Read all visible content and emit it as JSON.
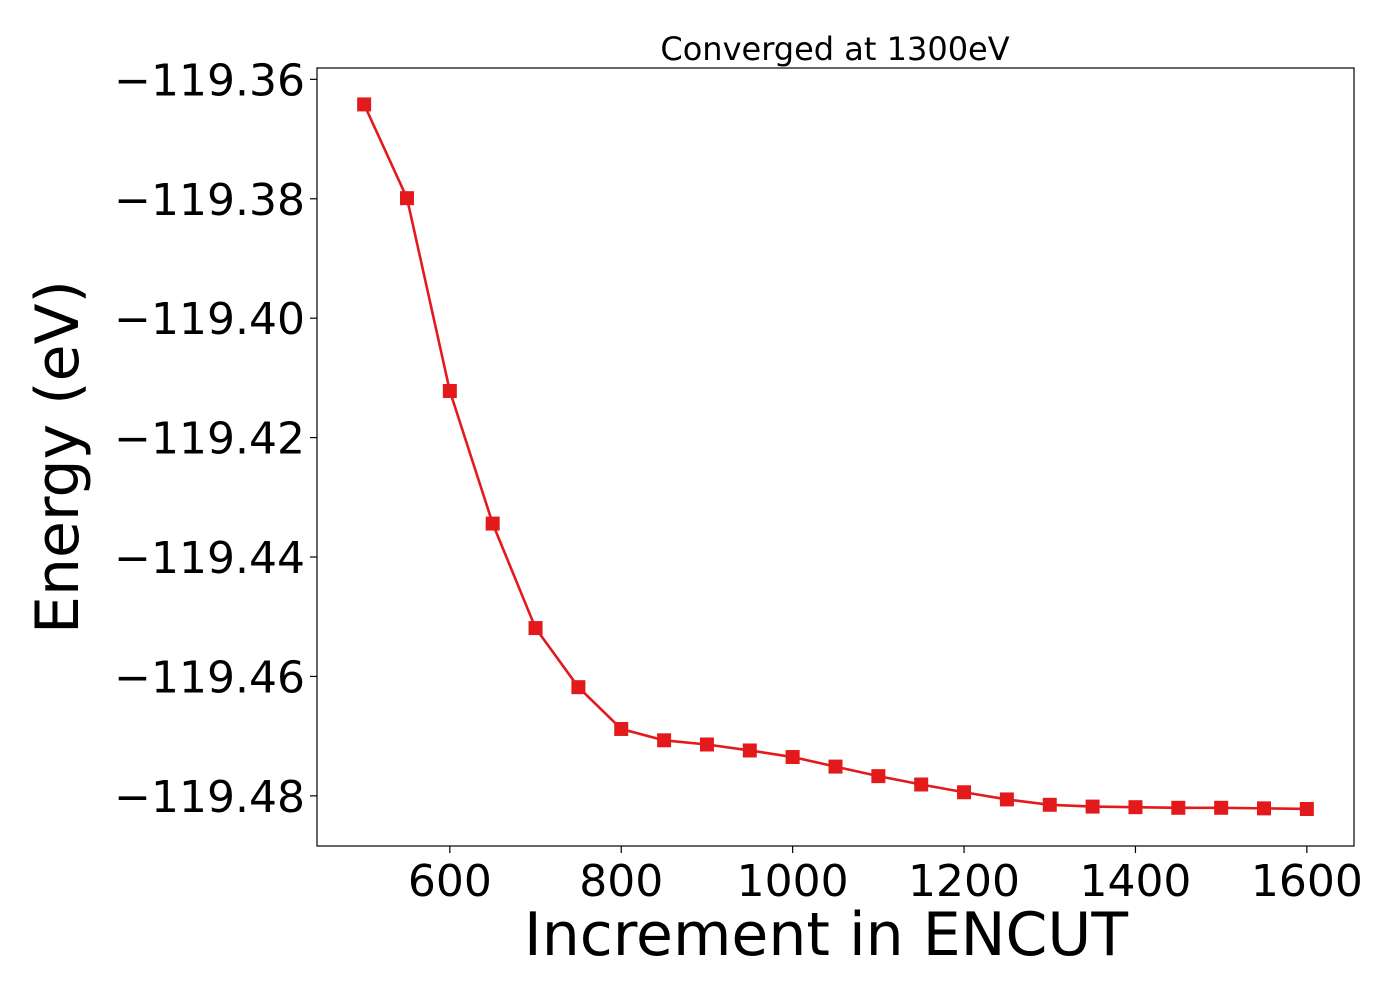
{
  "chart_data": {
    "type": "line",
    "title": "Converged at 1300eV",
    "xlabel": "Increment in ENCUT",
    "ylabel": "Energy (eV)",
    "xlim": [
      445,
      1655
    ],
    "ylim": [
      -119.4884,
      -119.3581
    ],
    "x_ticks": [
      600,
      800,
      1000,
      1200,
      1400,
      1600
    ],
    "x_tick_labels": [
      "600",
      "800",
      "1000",
      "1200",
      "1400",
      "1600"
    ],
    "y_ticks": [
      -119.36,
      -119.38,
      -119.4,
      -119.42,
      -119.44,
      -119.46,
      -119.48
    ],
    "y_tick_labels": [
      "−119.36",
      "−119.38",
      "−119.40",
      "−119.42",
      "−119.44",
      "−119.46",
      "−119.48"
    ],
    "grid": false,
    "series": [
      {
        "color": "#e31a1c",
        "marker": "square",
        "x": [
          500,
          550,
          600,
          650,
          700,
          750,
          800,
          850,
          900,
          950,
          1000,
          1050,
          1100,
          1150,
          1200,
          1250,
          1300,
          1350,
          1400,
          1450,
          1500,
          1550,
          1600
        ],
        "y": [
          -119.3642,
          -119.3799,
          -119.4122,
          -119.4344,
          -119.4519,
          -119.4618,
          -119.4688,
          -119.4707,
          -119.4714,
          -119.4724,
          -119.4735,
          -119.4751,
          -119.4767,
          -119.4781,
          -119.4794,
          -119.4806,
          -119.4815,
          -119.4818,
          -119.4819,
          -119.482,
          -119.482,
          -119.4821,
          -119.4822
        ]
      }
    ]
  }
}
